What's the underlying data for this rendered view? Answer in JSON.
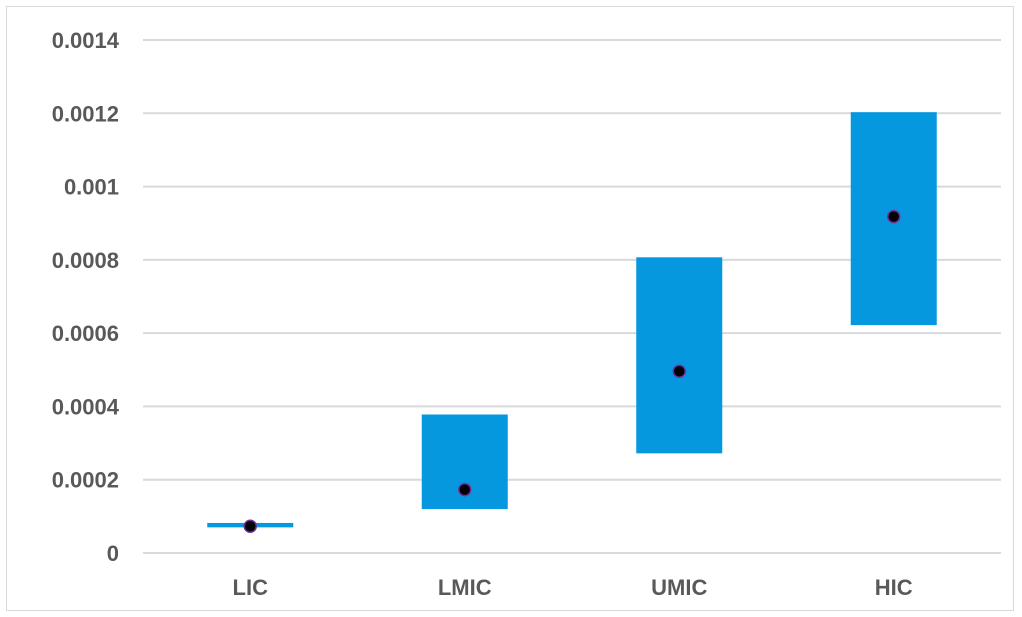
{
  "chart_data": {
    "type": "floating-bar-with-points",
    "categories": [
      "LIC",
      "LMIC",
      "UMIC",
      "HIC"
    ],
    "ranges": [
      {
        "low": 7e-05,
        "high": 8.2e-05
      },
      {
        "low": 0.00012,
        "high": 0.000378
      },
      {
        "low": 0.000272,
        "high": 0.000807
      },
      {
        "low": 0.000622,
        "high": 0.001203
      }
    ],
    "points": [
      7.3e-05,
      0.000173,
      0.000496,
      0.000918
    ],
    "ylim": [
      0,
      0.0014
    ],
    "y_ticks": [
      {
        "value": 0,
        "label": "0"
      },
      {
        "value": 0.0002,
        "label": "0.0002"
      },
      {
        "value": 0.0004,
        "label": "0.0004"
      },
      {
        "value": 0.0006,
        "label": "0.0006"
      },
      {
        "value": 0.0008,
        "label": "0.0008"
      },
      {
        "value": 0.001,
        "label": "0.001"
      },
      {
        "value": 0.0012,
        "label": "0.0012"
      },
      {
        "value": 0.0014,
        "label": "0.0014"
      }
    ],
    "title": "",
    "xlabel": "",
    "ylabel": "",
    "grid": true,
    "legend": "none",
    "colors": {
      "bar": "#0598DF",
      "point": "#000000",
      "point_outline": "#7030A0",
      "grid": "#D9D9D9",
      "text": "#595959"
    }
  }
}
